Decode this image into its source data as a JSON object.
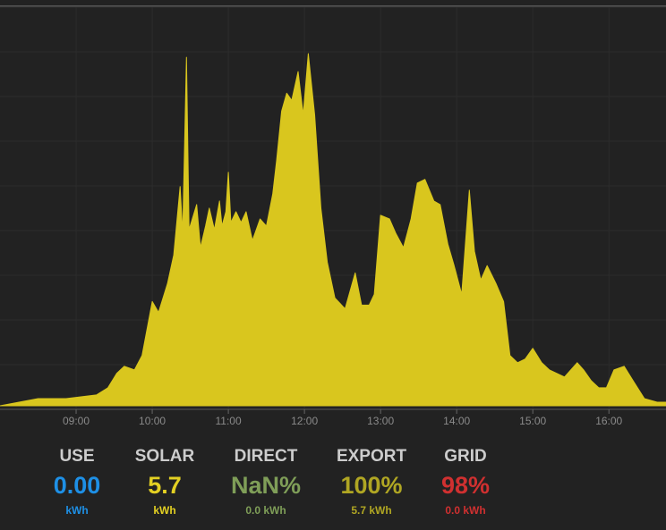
{
  "chart_data": {
    "type": "area",
    "x_unit": "time of day",
    "y_unit": "",
    "x_ticks": [
      "09:00",
      "10:00",
      "11:00",
      "12:00",
      "13:00",
      "14:00",
      "15:00",
      "16:00"
    ],
    "xlim": [
      "08:00",
      "16:45"
    ],
    "ylim": [
      0,
      1
    ],
    "grid": true,
    "series": [
      {
        "color": "#d9c61e",
        "points": [
          [
            "08:00",
            0.0
          ],
          [
            "08:30",
            0.02
          ],
          [
            "08:52",
            0.02
          ],
          [
            "09:16",
            0.03
          ],
          [
            "09:25",
            0.05
          ],
          [
            "09:32",
            0.09
          ],
          [
            "09:38",
            0.11
          ],
          [
            "09:46",
            0.1
          ],
          [
            "09:52",
            0.14
          ],
          [
            "10:00",
            0.29
          ],
          [
            "10:05",
            0.26
          ],
          [
            "10:12",
            0.34
          ],
          [
            "10:17",
            0.42
          ],
          [
            "10:22",
            0.61
          ],
          [
            "10:24",
            0.48
          ],
          [
            "10:27",
            0.97
          ],
          [
            "10:29",
            0.49
          ],
          [
            "10:35",
            0.56
          ],
          [
            "10:38",
            0.44
          ],
          [
            "10:42",
            0.5
          ],
          [
            "10:45",
            0.55
          ],
          [
            "10:49",
            0.49
          ],
          [
            "10:53",
            0.57
          ],
          [
            "10:55",
            0.5
          ],
          [
            "10:58",
            0.54
          ],
          [
            "11:00",
            0.65
          ],
          [
            "11:02",
            0.51
          ],
          [
            "11:06",
            0.54
          ],
          [
            "11:10",
            0.51
          ],
          [
            "11:14",
            0.54
          ],
          [
            "11:19",
            0.46
          ],
          [
            "11:25",
            0.52
          ],
          [
            "11:30",
            0.5
          ],
          [
            "11:35",
            0.59
          ],
          [
            "11:38",
            0.68
          ],
          [
            "11:42",
            0.82
          ],
          [
            "11:46",
            0.87
          ],
          [
            "11:50",
            0.85
          ],
          [
            "11:55",
            0.93
          ],
          [
            "11:59",
            0.81
          ],
          [
            "12:03",
            0.98
          ],
          [
            "12:08",
            0.81
          ],
          [
            "12:13",
            0.55
          ],
          [
            "12:18",
            0.4
          ],
          [
            "12:24",
            0.3
          ],
          [
            "12:32",
            0.27
          ],
          [
            "12:40",
            0.37
          ],
          [
            "12:45",
            0.28
          ],
          [
            "12:51",
            0.28
          ],
          [
            "12:55",
            0.31
          ],
          [
            "13:00",
            0.53
          ],
          [
            "13:07",
            0.52
          ],
          [
            "13:12",
            0.48
          ],
          [
            "13:18",
            0.44
          ],
          [
            "13:24",
            0.52
          ],
          [
            "13:29",
            0.62
          ],
          [
            "13:35",
            0.63
          ],
          [
            "13:42",
            0.57
          ],
          [
            "13:47",
            0.56
          ],
          [
            "13:53",
            0.45
          ],
          [
            "13:58",
            0.39
          ],
          [
            "14:04",
            0.31
          ],
          [
            "14:10",
            0.6
          ],
          [
            "14:14",
            0.43
          ],
          [
            "14:19",
            0.35
          ],
          [
            "14:24",
            0.39
          ],
          [
            "14:31",
            0.34
          ],
          [
            "14:37",
            0.29
          ],
          [
            "14:42",
            0.14
          ],
          [
            "14:48",
            0.12
          ],
          [
            "14:54",
            0.13
          ],
          [
            "15:00",
            0.16
          ],
          [
            "15:07",
            0.12
          ],
          [
            "15:13",
            0.1
          ],
          [
            "15:19",
            0.09
          ],
          [
            "15:25",
            0.08
          ],
          [
            "15:30",
            0.1
          ],
          [
            "15:35",
            0.12
          ],
          [
            "15:40",
            0.1
          ],
          [
            "15:46",
            0.07
          ],
          [
            "15:52",
            0.05
          ],
          [
            "15:58",
            0.05
          ],
          [
            "16:04",
            0.1
          ],
          [
            "16:12",
            0.11
          ],
          [
            "16:19",
            0.07
          ],
          [
            "16:28",
            0.02
          ],
          [
            "16:38",
            0.01
          ],
          [
            "16:45",
            0.01
          ]
        ]
      }
    ]
  },
  "stats": [
    {
      "title": "USE",
      "value": "0.00",
      "sub": "kWh",
      "color": "#1e90e6"
    },
    {
      "title": "SOLAR",
      "value": "5.7",
      "sub": "kWh",
      "color": "#e3d023"
    },
    {
      "title": "DIRECT",
      "value": "NaN%",
      "sub": "0.0 kWh",
      "color": "#7f9e58"
    },
    {
      "title": "EXPORT",
      "value": "100%",
      "sub": "5.7 kWh",
      "color": "#b0a623"
    },
    {
      "title": "GRID",
      "value": "98%",
      "sub": "0.0 kWh",
      "color": "#d03030"
    }
  ]
}
